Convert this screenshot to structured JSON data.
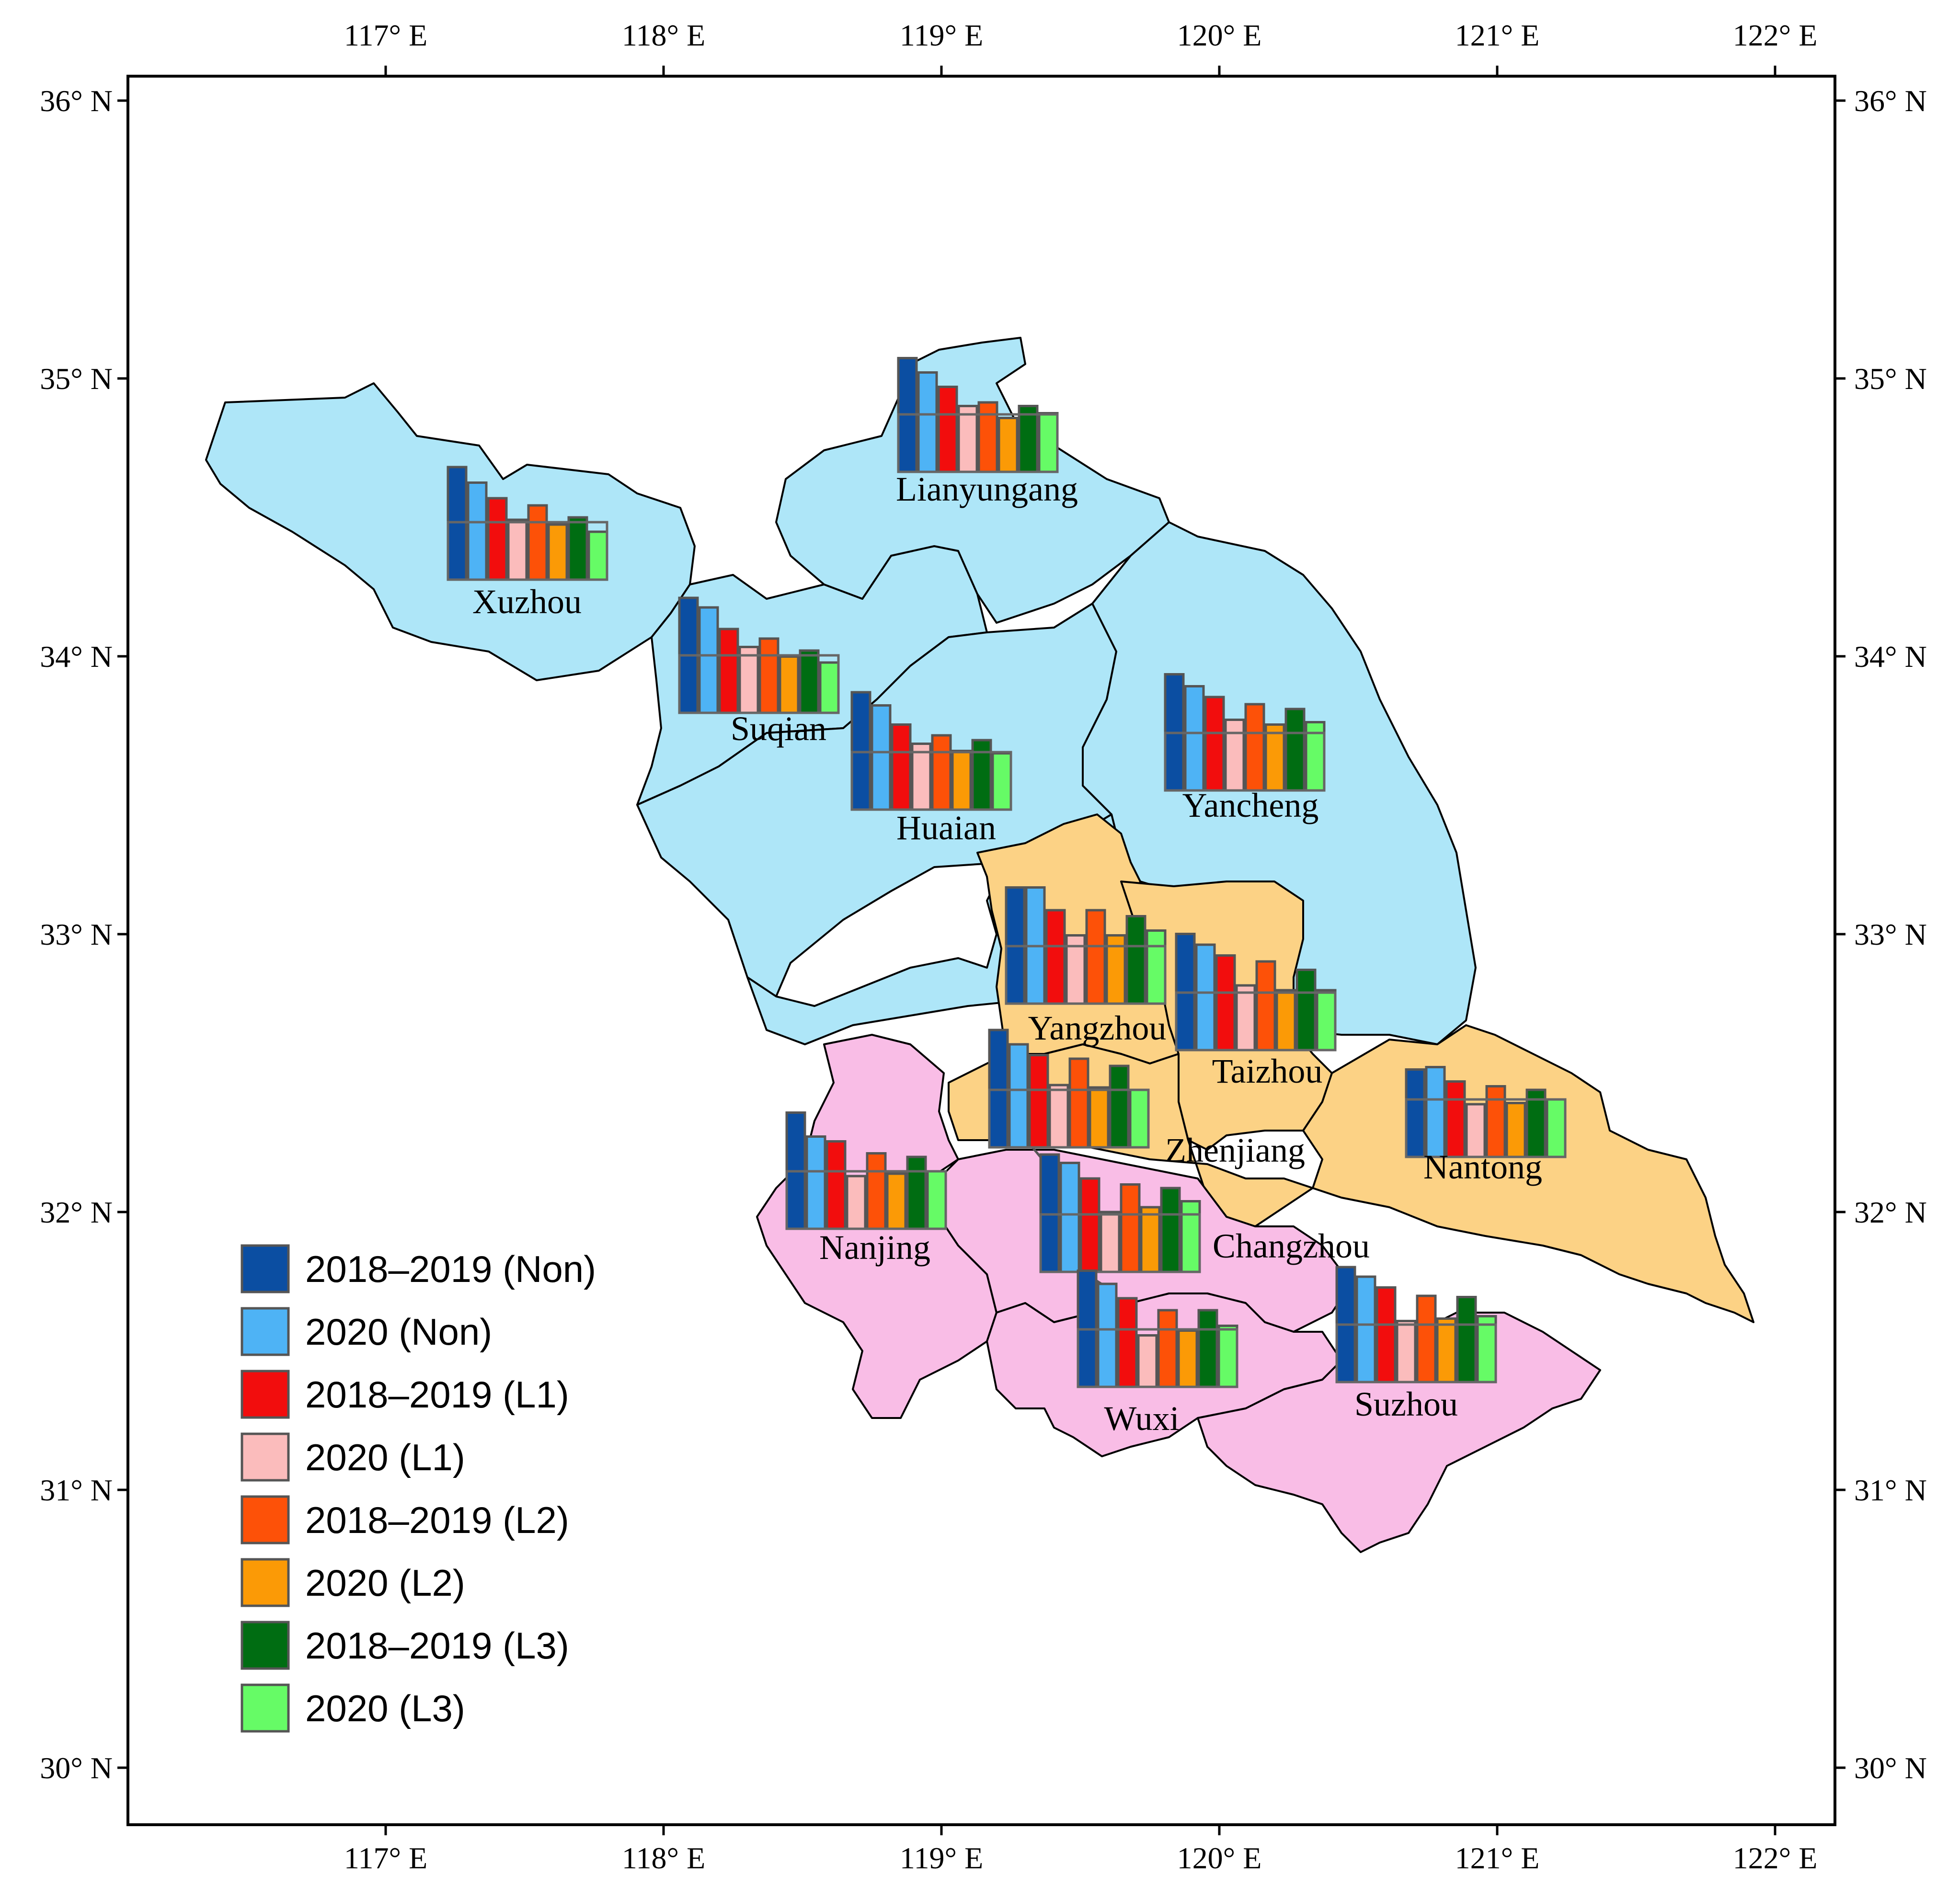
{
  "map": {
    "lon_ticks": [
      "117° E",
      "118° E",
      "119° E",
      "120° E",
      "121° E",
      "122° E"
    ],
    "lat_ticks": [
      "36° N",
      "35° N",
      "34° N",
      "33° N",
      "32° N",
      "31° N",
      "30° N"
    ],
    "regions": {
      "north": "#aee6f8",
      "central": "#fcd285",
      "south": "#f9bde6"
    }
  },
  "legend": [
    {
      "label": "2018–2019 (Non)",
      "color": "#0b4ea2"
    },
    {
      "label": "2020 (Non)",
      "color": "#4eb3f5"
    },
    {
      "label": "2018–2019 (L1)",
      "color": "#f20d0d"
    },
    {
      "label": "2020 (L1)",
      "color": "#fbbcbc"
    },
    {
      "label": "2018–2019 (L2)",
      "color": "#fd5108"
    },
    {
      "label": "2020 (L2)",
      "color": "#fb9a06"
    },
    {
      "label": "2018–2019 (L3)",
      "color": "#006d12"
    },
    {
      "label": "2020 (L3)",
      "color": "#66fb66"
    }
  ],
  "cities": [
    {
      "name": "Xuzhou",
      "values": [
        0.94,
        0.81,
        0.68,
        0.5,
        0.62,
        0.46,
        0.52,
        0.4
      ]
    },
    {
      "name": "Lianyungang",
      "values": [
        0.95,
        0.83,
        0.71,
        0.55,
        0.58,
        0.45,
        0.55,
        0.49
      ]
    },
    {
      "name": "Suqian",
      "values": [
        0.96,
        0.88,
        0.7,
        0.55,
        0.62,
        0.47,
        0.52,
        0.42
      ]
    },
    {
      "name": "Huaian",
      "values": [
        0.98,
        0.87,
        0.71,
        0.55,
        0.62,
        0.49,
        0.58,
        0.47
      ]
    },
    {
      "name": "Yancheng",
      "values": [
        0.97,
        0.87,
        0.78,
        0.59,
        0.72,
        0.55,
        0.68,
        0.57
      ]
    },
    {
      "name": "Yangzhou",
      "values": [
        0.97,
        0.97,
        0.78,
        0.57,
        0.78,
        0.57,
        0.73,
        0.61
      ]
    },
    {
      "name": "Taizhou",
      "values": [
        0.97,
        0.88,
        0.79,
        0.54,
        0.74,
        0.5,
        0.67,
        0.5
      ]
    },
    {
      "name": "Zhenjiang",
      "values": [
        0.98,
        0.86,
        0.77,
        0.52,
        0.74,
        0.5,
        0.68,
        0.48
      ]
    },
    {
      "name": "Nanjing",
      "values": [
        0.97,
        0.77,
        0.73,
        0.44,
        0.63,
        0.46,
        0.6,
        0.48
      ]
    },
    {
      "name": "Changzhou",
      "values": [
        0.98,
        0.91,
        0.78,
        0.5,
        0.73,
        0.54,
        0.7,
        0.59
      ]
    },
    {
      "name": "Nantong",
      "values": [
        0.73,
        0.75,
        0.63,
        0.44,
        0.59,
        0.45,
        0.56,
        0.48
      ]
    },
    {
      "name": "Wuxi",
      "values": [
        0.97,
        0.86,
        0.74,
        0.43,
        0.64,
        0.47,
        0.64,
        0.51
      ]
    },
    {
      "name": "Suzhou",
      "values": [
        0.96,
        0.88,
        0.79,
        0.51,
        0.72,
        0.53,
        0.71,
        0.55
      ]
    }
  ]
}
